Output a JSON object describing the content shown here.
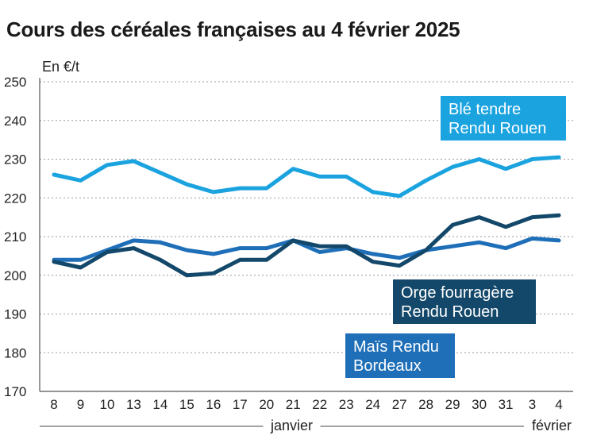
{
  "chart_data": {
    "type": "line",
    "title": "Cours des céréales françaises au 4 février 2025",
    "ylabel": "En €/t",
    "ylim": [
      170,
      250
    ],
    "yticks": [
      170,
      180,
      190,
      200,
      210,
      220,
      230,
      240,
      250
    ],
    "x": [
      "8",
      "9",
      "10",
      "13",
      "14",
      "15",
      "16",
      "17",
      "20",
      "21",
      "22",
      "23",
      "24",
      "27",
      "28",
      "29",
      "30",
      "31",
      "3",
      "4"
    ],
    "months": [
      {
        "label": "janvier",
        "from": "8",
        "to": "31"
      },
      {
        "label": "février",
        "from": "3",
        "to": "4"
      }
    ],
    "grid": true,
    "series": [
      {
        "name_lines": [
          "Blé tendre",
          "Rendu Rouen"
        ],
        "color": "#1aa3df",
        "values": [
          226,
          224.5,
          228.5,
          229.5,
          226.5,
          223.5,
          221.5,
          222.5,
          222.5,
          227.5,
          225.5,
          225.5,
          221.5,
          220.5,
          224.5,
          228,
          230,
          227.5,
          230,
          230.5
        ]
      },
      {
        "name_lines": [
          "Orge fourragère",
          "Rendu Rouen"
        ],
        "color": "#13486a",
        "values": [
          203.5,
          202,
          206,
          207,
          204,
          200,
          200.5,
          204,
          204,
          209,
          207.5,
          207.5,
          203.5,
          202.5,
          206.5,
          213,
          215,
          212.5,
          215,
          215.5
        ]
      },
      {
        "name_lines": [
          "Maïs Rendu",
          "Bordeaux"
        ],
        "color": "#1f6fb8",
        "values": [
          204,
          204,
          206.5,
          209,
          208.5,
          206.5,
          205.5,
          207,
          207,
          209,
          206,
          207,
          205.5,
          204.5,
          206.5,
          207.5,
          208.5,
          207,
          209.5,
          209
        ]
      }
    ]
  }
}
